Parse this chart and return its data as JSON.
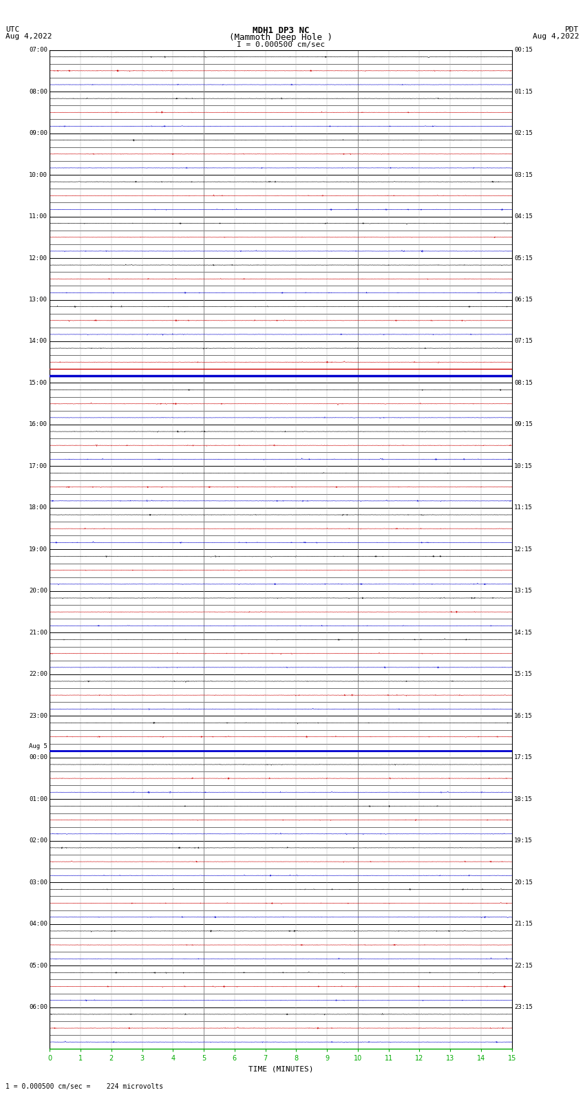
{
  "title_line1": "MDH1 DP3 NC",
  "title_line2": "(Mammoth Deep Hole )",
  "title_line3": "I = 0.000500 cm/sec",
  "left_label": "UTC",
  "left_date": "Aug 4,2022",
  "right_label": "PDT",
  "right_date": "Aug 4,2022",
  "aug5_label": "Aug 5",
  "xlabel": "TIME (MINUTES)",
  "footer": "1 = 0.000500 cm/sec =    224 microvolts",
  "utc_times": [
    "07:00",
    "08:00",
    "09:00",
    "10:00",
    "11:00",
    "12:00",
    "13:00",
    "14:00",
    "15:00",
    "16:00",
    "17:00",
    "18:00",
    "19:00",
    "20:00",
    "21:00",
    "22:00",
    "23:00",
    "00:00",
    "01:00",
    "02:00",
    "03:00",
    "04:00",
    "05:00",
    "06:00"
  ],
  "pdt_times": [
    "00:15",
    "01:15",
    "02:15",
    "03:15",
    "04:15",
    "05:15",
    "06:15",
    "07:15",
    "08:15",
    "09:15",
    "10:15",
    "11:15",
    "12:15",
    "13:15",
    "14:15",
    "15:15",
    "16:15",
    "17:15",
    "18:15",
    "19:15",
    "20:15",
    "21:15",
    "22:15",
    "23:15"
  ],
  "n_hour_rows": 24,
  "sub_rows_per_hour": 3,
  "minutes_per_row": 15,
  "background_color": "#ffffff",
  "trace_color_black": "#000000",
  "trace_color_red": "#cc0000",
  "trace_color_blue": "#0000cc",
  "trace_color_green": "#007700",
  "grid_minor_color": "#aaaaaa",
  "grid_major_color": "#888888",
  "border_color": "#000000",
  "xaxis_color": "#00aa00",
  "big_event_hour": 7,
  "big_event2_hour": 16
}
